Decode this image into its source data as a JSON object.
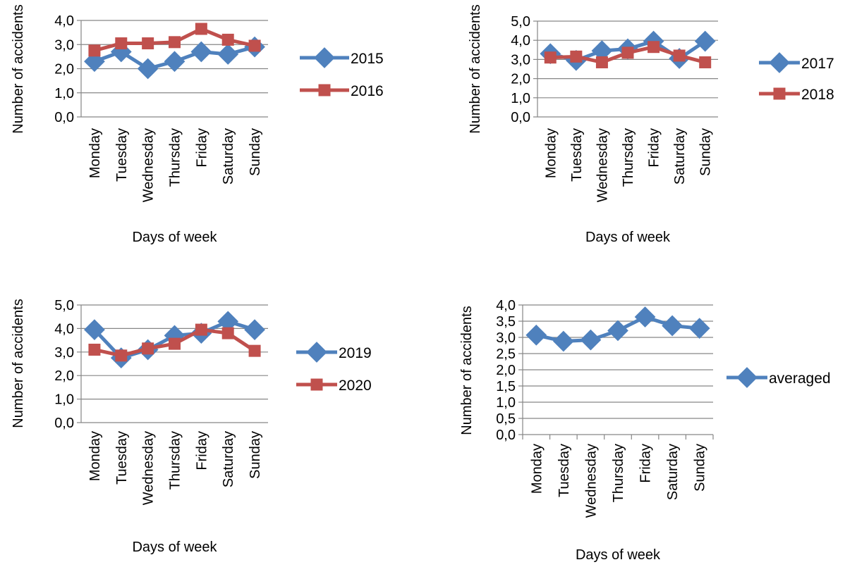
{
  "page": {
    "background": "#ffffff"
  },
  "style": {
    "grid_color": "#868686",
    "axis_color": "#868686"
  },
  "chart_data": [
    {
      "type": "line",
      "categories": [
        "Monday",
        "Tuesday",
        "Wednesday",
        "Thursday",
        "Friday",
        "Saturday",
        "Sunday"
      ],
      "series": [
        {
          "name": "2015",
          "values": [
            2.3,
            2.7,
            2.0,
            2.3,
            2.7,
            2.6,
            2.9
          ],
          "color": "#4f81bd",
          "marker": "diamond"
        },
        {
          "name": "2016",
          "values": [
            2.75,
            3.05,
            3.05,
            3.1,
            3.65,
            3.2,
            2.95
          ],
          "color": "#c0504d",
          "marker": "square"
        }
      ],
      "xlabel": "Days of week",
      "ylabel": "Number of accidents",
      "ylim": [
        0,
        4
      ],
      "yticks": [
        "0,0",
        "1,0",
        "2,0",
        "3,0",
        "4,0"
      ],
      "grid": true,
      "legend": "right"
    },
    {
      "type": "line",
      "categories": [
        "Monday",
        "Tuesday",
        "Wednesday",
        "Thursday",
        "Friday",
        "Saturday",
        "Sunday"
      ],
      "series": [
        {
          "name": "2017",
          "values": [
            3.3,
            2.95,
            3.45,
            3.55,
            3.95,
            3.05,
            3.95
          ],
          "color": "#4f81bd",
          "marker": "diamond"
        },
        {
          "name": "2018",
          "values": [
            3.1,
            3.15,
            2.85,
            3.35,
            3.65,
            3.2,
            2.85
          ],
          "color": "#c0504d",
          "marker": "square"
        }
      ],
      "xlabel": "Days of week",
      "ylabel": "Number of accidents",
      "ylim": [
        0,
        5
      ],
      "yticks": [
        "0,0",
        "1,0",
        "2,0",
        "3,0",
        "4,0",
        "5,0"
      ],
      "grid": true,
      "legend": "right"
    },
    {
      "type": "line",
      "categories": [
        "Monday",
        "Tuesday",
        "Wednesday",
        "Thursday",
        "Friday",
        "Saturday",
        "Sunday"
      ],
      "series": [
        {
          "name": "2019",
          "values": [
            3.95,
            2.75,
            3.1,
            3.7,
            3.8,
            4.3,
            3.95
          ],
          "color": "#4f81bd",
          "marker": "diamond"
        },
        {
          "name": "2020",
          "values": [
            3.1,
            2.85,
            3.15,
            3.35,
            3.95,
            3.8,
            3.05
          ],
          "color": "#c0504d",
          "marker": "square"
        }
      ],
      "xlabel": "Days of week",
      "ylabel": "Number of accidents",
      "ylim": [
        0,
        5
      ],
      "yticks": [
        "0,0",
        "1,0",
        "2,0",
        "3,0",
        "4,0",
        "5,0"
      ],
      "grid": true,
      "legend": "right"
    },
    {
      "type": "line",
      "categories": [
        "Monday",
        "Tuesday",
        "Wednesday",
        "Thursday",
        "Friday",
        "Saturday",
        "Sunday"
      ],
      "series": [
        {
          "name": "averaged",
          "values": [
            3.07,
            2.88,
            2.92,
            3.21,
            3.63,
            3.36,
            3.28
          ],
          "color": "#4f81bd",
          "marker": "diamond"
        }
      ],
      "xlabel": "Days of week",
      "ylabel": "Number of accidents",
      "ylim": [
        0,
        4
      ],
      "yticks": [
        "0,0",
        "0,5",
        "1,0",
        "1,5",
        "2,0",
        "2,5",
        "3,0",
        "3,5",
        "4,0"
      ],
      "grid": true,
      "legend": "right"
    }
  ]
}
